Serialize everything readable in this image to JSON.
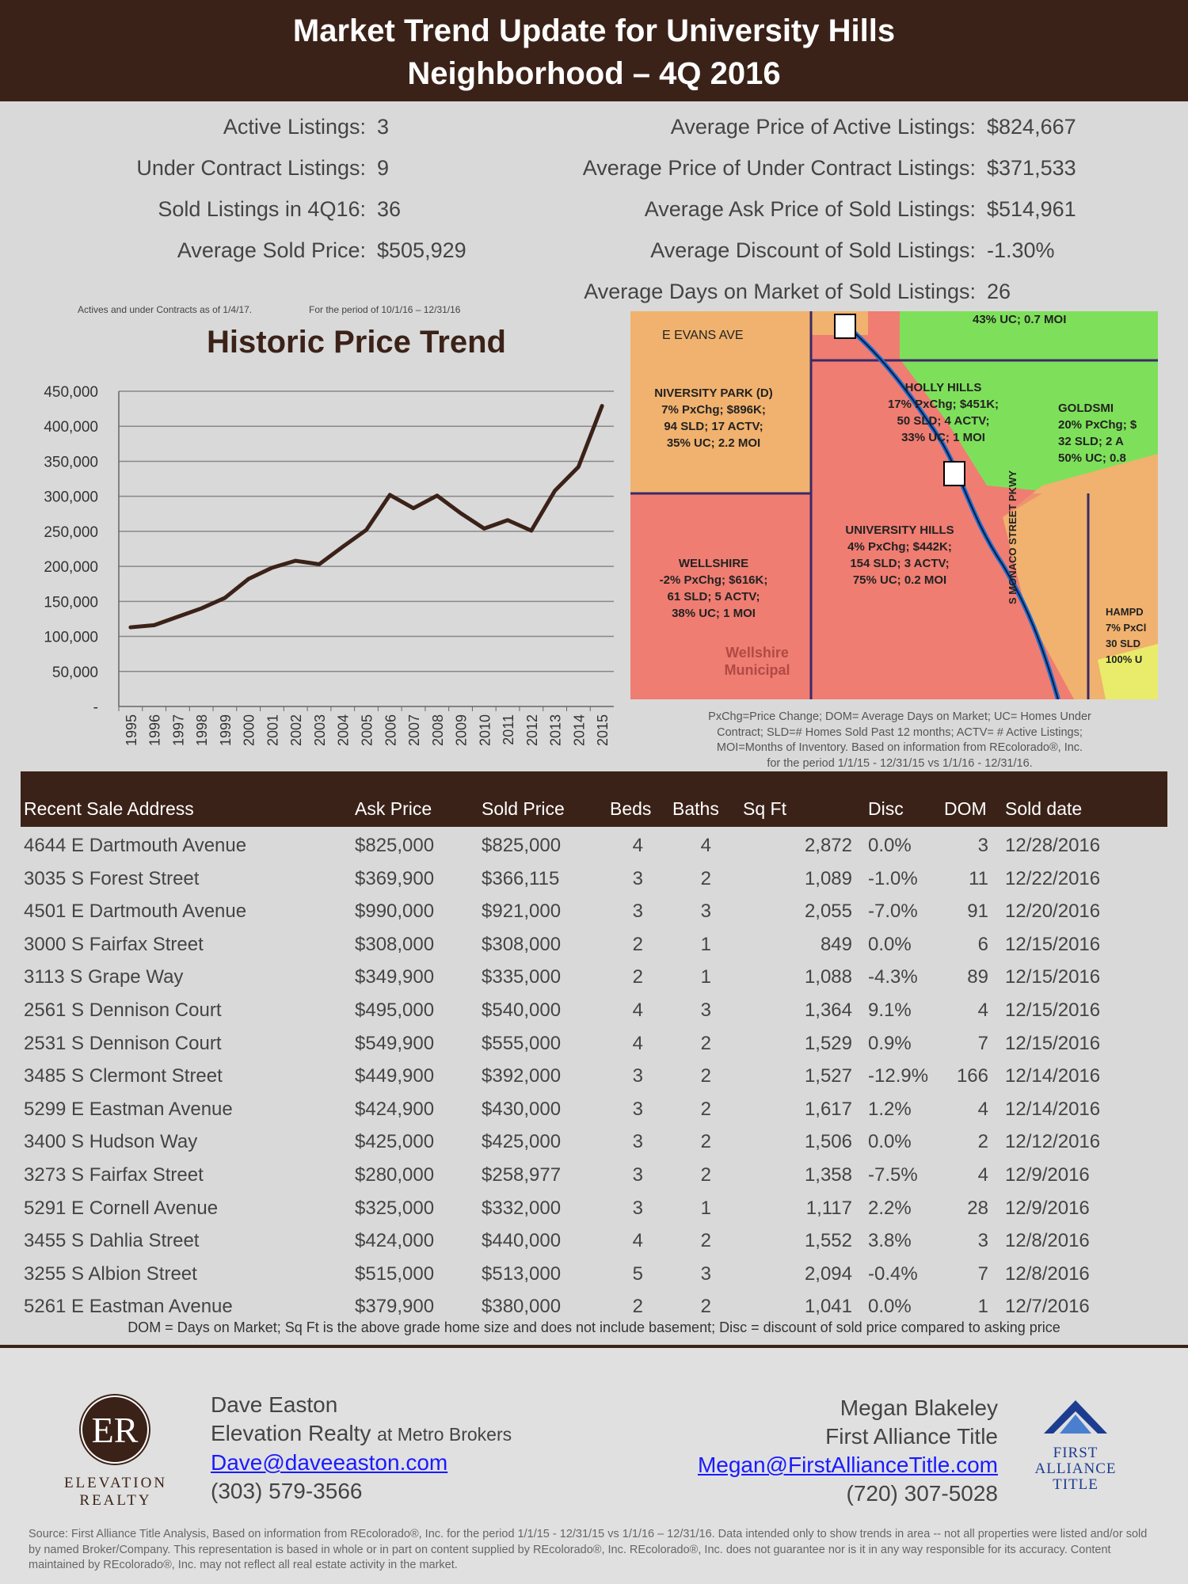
{
  "header": {
    "title_line1": "Market Trend Update for University Hills",
    "title_line2": "Neighborhood – 4Q 2016"
  },
  "stats_left": [
    {
      "label": "Active Listings:",
      "value": "3"
    },
    {
      "label": "Under Contract Listings:",
      "value": "9"
    },
    {
      "label": "Sold Listings in 4Q16:",
      "value": "36"
    },
    {
      "label": "Average Sold Price:",
      "value": "$505,929"
    }
  ],
  "stats_right": [
    {
      "label": "Average Price of Active Listings:",
      "value": "$824,667"
    },
    {
      "label": "Average Price of Under Contract Listings:",
      "value": "$371,533"
    },
    {
      "label": "Average Ask Price of Sold Listings:",
      "value": "$514,961"
    },
    {
      "label": "Average Discount of Sold Listings:",
      "value": "-1.30%"
    },
    {
      "label": "Average Days on Market of Sold Listings:",
      "value": "26"
    }
  ],
  "notes": {
    "actives": "Actives and under Contracts as of 1/4/17.",
    "period": "For the period of 10/1/16 – 12/31/16"
  },
  "chart_data": {
    "type": "line",
    "title": "Historic Price Trend",
    "xlabel": "",
    "ylabel": "",
    "categories": [
      "1995",
      "1996",
      "1997",
      "1998",
      "1999",
      "2000",
      "2001",
      "2002",
      "2003",
      "2004",
      "2005",
      "2006",
      "2007",
      "2008",
      "2009",
      "2010",
      "2011",
      "2012",
      "2013",
      "2014",
      "2015"
    ],
    "values": [
      113000,
      116000,
      128000,
      140000,
      155000,
      182000,
      198000,
      208000,
      203000,
      228000,
      252000,
      302000,
      283000,
      301000,
      276000,
      254000,
      266000,
      251000,
      308000,
      342000,
      429000
    ],
    "y_ticks": [
      "-",
      "50,000",
      "100,000",
      "150,000",
      "200,000",
      "250,000",
      "300,000",
      "350,000",
      "400,000",
      "450,000"
    ],
    "ylim": [
      0,
      450000
    ],
    "grid": "horizontal",
    "line_color": "#3b2218"
  },
  "map": {
    "street_evans": "E EVANS AVE",
    "areas": [
      {
        "name": "NIVERSITY PARK (D)",
        "l1": "7% PxChg; $896K;",
        "l2": "94 SLD; 17 ACTV;",
        "l3": "35% UC; 2.2 MOI"
      },
      {
        "name": "HOLLY HILLS",
        "l1": "17% PxChg; $451K;",
        "l2": "50 SLD; 4 ACTV;",
        "l3": "33% UC; 1 MOI"
      },
      {
        "name": "GOLDSMI",
        "l1": "20% PxChg; $",
        "l2": "32 SLD; 2 A",
        "l3": "50% UC; 0.8"
      },
      {
        "name": "UNIVERSITY HILLS",
        "l1": "4% PxChg; $442K;",
        "l2": "154 SLD; 3 ACTV;",
        "l3": "75% UC; 0.2 MOI"
      },
      {
        "name": "WELLSHIRE",
        "l1": "-2% PxChg; $616K;",
        "l2": "61 SLD; 5 ACTV;",
        "l3": "38% UC; 1 MOI"
      },
      {
        "name": "HAMPD",
        "l1": "7% PxCl",
        "l2": "30 SLD",
        "l3": "100% U"
      }
    ],
    "top_text": "43% UC; 0.7 MOI",
    "street_monaco": "S MONACO STREET PKWY",
    "wellshire_muni": "Wellshire Municipal"
  },
  "map_caption": [
    "PxChg=Price Change; DOM= Average Days on Market; UC= Homes Under",
    "Contract; SLD=# Homes Sold Past 12 months; ACTV= # Active Listings;",
    "MOI=Months of Inventory. Based on information from REcolorado®, Inc.",
    "for the period 1/1/15 - 12/31/15 vs 1/1/16 - 12/31/16."
  ],
  "table": {
    "headers": {
      "address": "Recent Sale Address",
      "ask": "Ask Price",
      "sold": "Sold Price",
      "beds": "Beds",
      "baths": "Baths",
      "sqft": "Sq Ft",
      "disc": "Disc",
      "dom": "DOM",
      "date": "Sold date"
    },
    "rows": [
      [
        "4644 E Dartmouth Avenue",
        "$825,000",
        "$825,000",
        "4",
        "4",
        "2,872",
        "0.0%",
        "3",
        "12/28/2016"
      ],
      [
        "3035 S Forest Street",
        "$369,900",
        "$366,115",
        "3",
        "2",
        "1,089",
        "-1.0%",
        "11",
        "12/22/2016"
      ],
      [
        "4501 E Dartmouth Avenue",
        "$990,000",
        "$921,000",
        "3",
        "3",
        "2,055",
        "-7.0%",
        "91",
        "12/20/2016"
      ],
      [
        "3000 S Fairfax Street",
        "$308,000",
        "$308,000",
        "2",
        "1",
        "849",
        "0.0%",
        "6",
        "12/15/2016"
      ],
      [
        "3113 S Grape Way",
        "$349,900",
        "$335,000",
        "2",
        "1",
        "1,088",
        "-4.3%",
        "89",
        "12/15/2016"
      ],
      [
        "2561 S Dennison Court",
        "$495,000",
        "$540,000",
        "4",
        "3",
        "1,364",
        "9.1%",
        "4",
        "12/15/2016"
      ],
      [
        "2531 S Dennison Court",
        "$549,900",
        "$555,000",
        "4",
        "2",
        "1,529",
        "0.9%",
        "7",
        "12/15/2016"
      ],
      [
        "3485 S Clermont Street",
        "$449,900",
        "$392,000",
        "3",
        "2",
        "1,527",
        "-12.9%",
        "166",
        "12/14/2016"
      ],
      [
        "5299 E Eastman Avenue",
        "$424,900",
        "$430,000",
        "3",
        "2",
        "1,617",
        "1.2%",
        "4",
        "12/14/2016"
      ],
      [
        "3400 S Hudson Way",
        "$425,000",
        "$425,000",
        "3",
        "2",
        "1,506",
        "0.0%",
        "2",
        "12/12/2016"
      ],
      [
        "3273 S Fairfax Street",
        "$280,000",
        "$258,977",
        "3",
        "2",
        "1,358",
        "-7.5%",
        "4",
        "12/9/2016"
      ],
      [
        "5291 E Cornell Avenue",
        "$325,000",
        "$332,000",
        "3",
        "1",
        "1,117",
        "2.2%",
        "28",
        "12/9/2016"
      ],
      [
        "3455 S Dahlia Street",
        "$424,000",
        "$440,000",
        "4",
        "2",
        "1,552",
        "3.8%",
        "3",
        "12/8/2016"
      ],
      [
        "3255 S Albion Street",
        "$515,000",
        "$513,000",
        "5",
        "3",
        "2,094",
        "-0.4%",
        "7",
        "12/8/2016"
      ],
      [
        "5261 E Eastman Avenue",
        "$379,900",
        "$380,000",
        "2",
        "2",
        "1,041",
        "0.0%",
        "1",
        "12/7/2016"
      ]
    ],
    "note": "DOM = Days on Market; Sq Ft is the above grade home size and does not include basement; Disc = discount of sold price compared to asking price"
  },
  "agent": {
    "name": "Dave Easton",
    "company": "Elevation Realty",
    "company_suffix": "at Metro Brokers",
    "email": "Dave@daveeaston.com",
    "phone": "(303) 579-3566",
    "logo_word": "ELEVATION REALTY"
  },
  "title_rep": {
    "name": "Megan Blakeley",
    "company": "First Alliance Title",
    "email": "Megan@FirstAllianceTitle.com",
    "phone": "(720) 307-5028",
    "logo_line1": "FIRST ALLIANCE",
    "logo_line2": "TITLE"
  },
  "source": "Source:  First Alliance Title Analysis, Based on information from REcolorado®, Inc. for the period 1/1/15 - 12/31/15 vs 1/1/16 – 12/31/16. Data intended only to show trends in area -- not all properties were listed and/or sold by named Broker/Company. This representation is based in whole or in part on content supplied by REcolorado®, Inc. REcolorado®, Inc. does not guarantee nor is  it in any way responsible for its accuracy. Content maintained by REcolorado®, Inc. may not reflect all real estate activity in the market."
}
